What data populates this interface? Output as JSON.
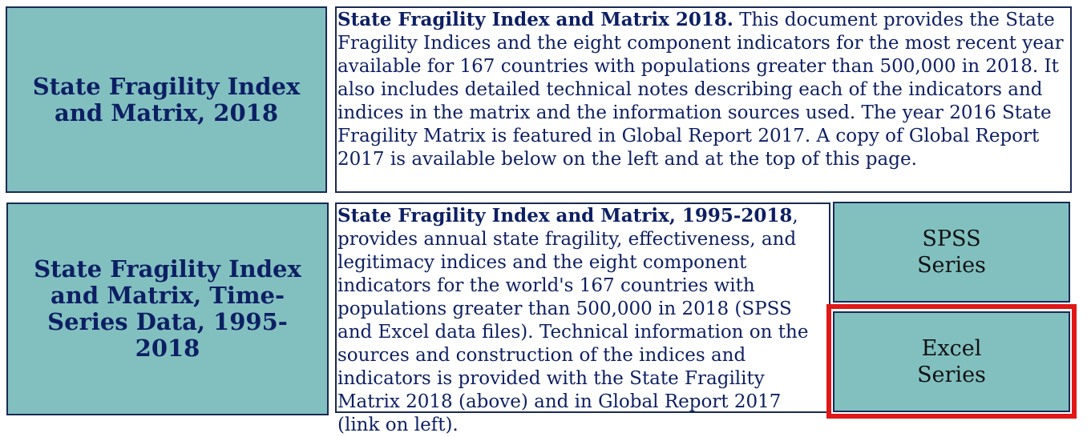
{
  "row1": {
    "tile_title": "State Fragility Index and Matrix, 2018",
    "desc_bold": "State Fragility Index and Matrix 2018.",
    "desc_text": " This document provides the State Fragility Indices and the eight component indicators for the most recent year available for 167 countries with populations greater than 500,000 in 2018. It also includes detailed technical notes describing each of the indicators and indices in the matrix and the information sources used. The year 2016 State Fragility Matrix is featured in Global Report 2017. A copy of Global Report 2017 is available below on the left and at the top of this page."
  },
  "row2": {
    "tile_title": "State Fragility Index and Matrix, Time-Series Data, 1995-2018",
    "desc_bold": "State Fragility Index and Matrix, 1995-2018",
    "desc_text": ", provides annual state fragility, effectiveness, and legitimacy indices and the eight component indicators for the world's 167 countries with populations greater than 500,000 in 2018 (SPSS and Excel data files). Technical information on the sources and construction of the indices and indicators is provided with the State Fragility Matrix 2018 (above) and in Global Report 2017 (link on left).",
    "spss_button": {
      "line1": "SPSS",
      "line2": "Series"
    },
    "excel_button": {
      "line1": "Excel",
      "line2": "Series"
    }
  },
  "colors": {
    "tile_bg": "#82c0c0",
    "border": "#1a2a55",
    "text": "#0d1f63",
    "highlight": "#e01818"
  }
}
